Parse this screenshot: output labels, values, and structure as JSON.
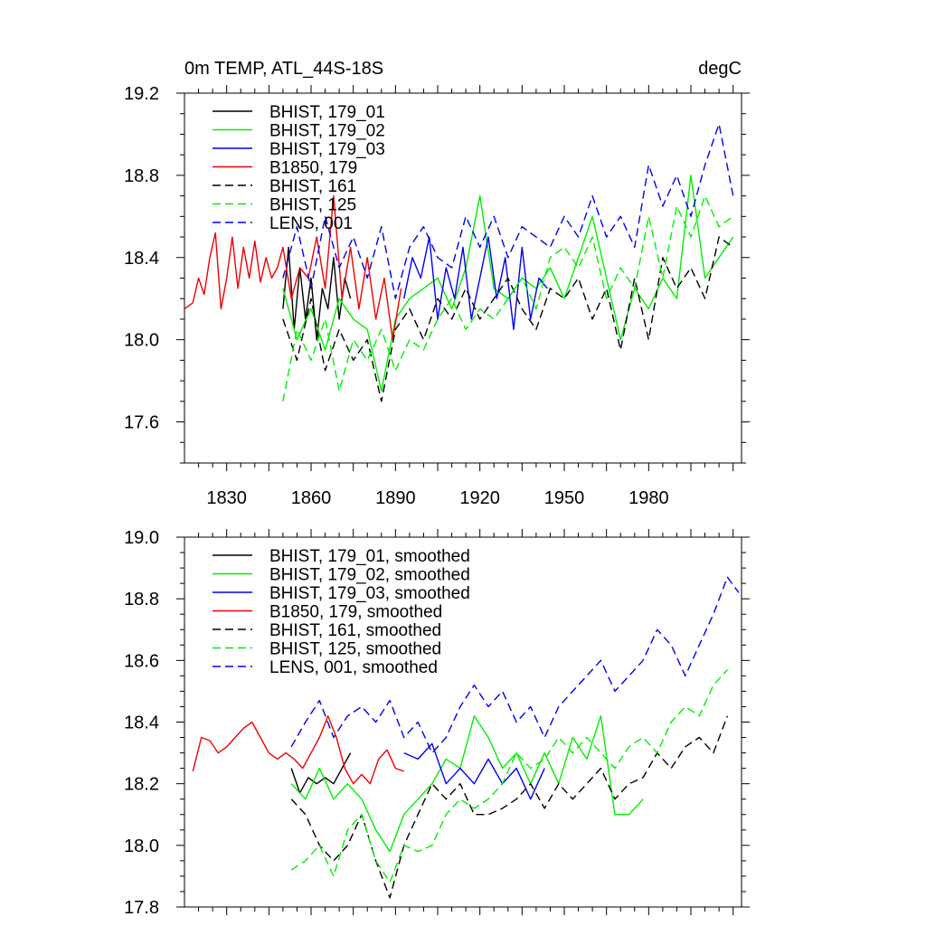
{
  "chart_data": [
    {
      "type": "line",
      "title_left": "0m TEMP, ATL_44S-18S",
      "title_right": "degC",
      "xlabel": "",
      "ylabel": "",
      "xlim": [
        1815,
        2013
      ],
      "ylim": [
        17.4,
        19.2
      ],
      "xticks": [
        1830,
        1860,
        1890,
        1920,
        1950,
        1980
      ],
      "yticks": [
        17.6,
        18.0,
        18.4,
        18.8,
        19.2
      ],
      "legend_position": "top-left",
      "series": [
        {
          "name": "BHIST, 179_01",
          "color": "#000000",
          "dash": "solid",
          "x": [
            1850,
            1852,
            1854,
            1856,
            1858,
            1860,
            1862,
            1864,
            1866,
            1868,
            1870,
            1872,
            1874
          ],
          "values": [
            18.15,
            18.45,
            18.05,
            18.35,
            18.1,
            18.3,
            18.0,
            18.25,
            18.15,
            18.4,
            18.1,
            18.3,
            18.2
          ]
        },
        {
          "name": "BHIST, 179_02",
          "color": "#00ee00",
          "dash": "solid",
          "x": [
            1850,
            1855,
            1860,
            1865,
            1870,
            1875,
            1880,
            1885,
            1890,
            1895,
            1900,
            1905,
            1910,
            1915,
            1920,
            1925,
            1930,
            1935,
            1940,
            1945,
            1950,
            1955,
            1960,
            1965,
            1970,
            1975,
            1980,
            1985,
            1990,
            1995,
            2000,
            2005,
            2010
          ],
          "values": [
            18.25,
            18.0,
            18.15,
            17.95,
            18.2,
            18.1,
            18.05,
            17.75,
            18.1,
            18.2,
            18.25,
            18.3,
            18.15,
            18.35,
            18.7,
            18.25,
            18.2,
            18.3,
            18.25,
            18.35,
            18.2,
            18.4,
            18.6,
            18.3,
            18.0,
            18.25,
            18.15,
            18.3,
            18.2,
            18.8,
            18.3,
            18.4,
            18.5
          ]
        },
        {
          "name": "BHIST, 179_03",
          "color": "#0000ee",
          "dash": "solid",
          "x": [
            1893,
            1896,
            1899,
            1902,
            1905,
            1908,
            1911,
            1914,
            1917,
            1920,
            1923,
            1926,
            1929,
            1932,
            1935,
            1938,
            1941,
            1944
          ],
          "values": [
            18.2,
            18.4,
            18.3,
            18.5,
            18.1,
            18.35,
            18.2,
            18.45,
            18.1,
            18.3,
            18.5,
            18.2,
            18.4,
            18.05,
            18.45,
            18.1,
            18.3,
            18.25
          ]
        },
        {
          "name": "B1850, 179",
          "color": "#ee0000",
          "dash": "solid",
          "x": [
            1815,
            1818,
            1820,
            1822,
            1824,
            1826,
            1828,
            1830,
            1832,
            1834,
            1836,
            1838,
            1840,
            1842,
            1844,
            1846,
            1848,
            1850,
            1853,
            1856,
            1859,
            1862,
            1865,
            1868,
            1871,
            1874,
            1877,
            1880,
            1883,
            1886,
            1889,
            1892
          ],
          "values": [
            18.15,
            18.18,
            18.3,
            18.22,
            18.4,
            18.52,
            18.15,
            18.3,
            18.5,
            18.25,
            18.45,
            18.3,
            18.48,
            18.28,
            18.4,
            18.3,
            18.35,
            18.45,
            18.2,
            18.35,
            18.3,
            18.5,
            18.25,
            18.7,
            18.2,
            18.45,
            18.15,
            18.4,
            18.1,
            18.3,
            18.0,
            18.25
          ]
        },
        {
          "name": "BHIST, 161",
          "color": "#000000",
          "dash": "dashed",
          "x": [
            1850,
            1855,
            1860,
            1865,
            1870,
            1875,
            1880,
            1885,
            1890,
            1895,
            1900,
            1905,
            1910,
            1915,
            1920,
            1925,
            1930,
            1935,
            1940,
            1945,
            1950,
            1955,
            1960,
            1965,
            1970,
            1975,
            1980,
            1985,
            1990,
            1995,
            2000,
            2005,
            2010
          ],
          "values": [
            18.1,
            17.9,
            18.2,
            17.85,
            18.05,
            17.9,
            18.0,
            17.7,
            18.05,
            18.15,
            18.0,
            18.2,
            18.1,
            18.25,
            18.1,
            18.2,
            18.3,
            18.15,
            18.05,
            18.25,
            18.2,
            18.3,
            18.1,
            18.25,
            17.95,
            18.3,
            18.0,
            18.4,
            18.25,
            18.35,
            18.2,
            18.5,
            18.45
          ]
        },
        {
          "name": "BHIST, 125",
          "color": "#00ee00",
          "dash": "dashed",
          "x": [
            1850,
            1855,
            1860,
            1865,
            1870,
            1875,
            1880,
            1885,
            1890,
            1895,
            1900,
            1905,
            1910,
            1915,
            1920,
            1925,
            1930,
            1935,
            1940,
            1945,
            1950,
            1955,
            1960,
            1965,
            1970,
            1975,
            1980,
            1985,
            1990,
            1995,
            2000,
            2005,
            2010
          ],
          "values": [
            17.7,
            18.05,
            17.9,
            18.1,
            17.75,
            18.0,
            17.9,
            18.05,
            17.85,
            18.0,
            17.95,
            18.1,
            18.2,
            18.05,
            18.15,
            18.1,
            18.2,
            18.3,
            18.15,
            18.4,
            18.45,
            18.35,
            18.5,
            18.2,
            18.35,
            18.25,
            18.6,
            18.3,
            18.65,
            18.5,
            18.7,
            18.55,
            18.6
          ]
        },
        {
          "name": "LENS, 001",
          "color": "#0000ee",
          "dash": "dashed",
          "x": [
            1850,
            1855,
            1860,
            1865,
            1870,
            1875,
            1880,
            1885,
            1890,
            1895,
            1900,
            1905,
            1910,
            1915,
            1920,
            1925,
            1930,
            1935,
            1940,
            1945,
            1950,
            1955,
            1960,
            1965,
            1970,
            1975,
            1980,
            1985,
            1990,
            1995,
            2000,
            2005,
            2010
          ],
          "values": [
            18.3,
            18.55,
            18.25,
            18.6,
            18.35,
            18.5,
            18.3,
            18.55,
            18.2,
            18.45,
            18.55,
            18.4,
            18.35,
            18.6,
            18.45,
            18.6,
            18.4,
            18.55,
            18.5,
            18.45,
            18.6,
            18.5,
            18.7,
            18.5,
            18.6,
            18.45,
            18.85,
            18.65,
            18.8,
            18.6,
            18.85,
            19.05,
            18.7
          ]
        }
      ]
    },
    {
      "type": "line",
      "title_left": "",
      "title_right": "",
      "xlabel": "",
      "ylabel": "",
      "xlim": [
        1815,
        2013
      ],
      "ylim": [
        17.8,
        19.0
      ],
      "yticks": [
        17.8,
        18.0,
        18.2,
        18.4,
        18.6,
        18.8,
        19.0
      ],
      "legend_position": "top-left",
      "series": [
        {
          "name": "BHIST, 179_01, smoothed",
          "color": "#000000",
          "dash": "solid",
          "x": [
            1853,
            1856,
            1859,
            1862,
            1865,
            1868,
            1871,
            1874
          ],
          "values": [
            18.25,
            18.17,
            18.22,
            18.2,
            18.22,
            18.2,
            18.25,
            18.3
          ]
        },
        {
          "name": "BHIST, 179_02, smoothed",
          "color": "#00ee00",
          "dash": "solid",
          "x": [
            1853,
            1858,
            1863,
            1868,
            1873,
            1878,
            1883,
            1888,
            1893,
            1898,
            1903,
            1908,
            1913,
            1918,
            1923,
            1928,
            1933,
            1938,
            1943,
            1948,
            1953,
            1958,
            1963,
            1968,
            1973,
            1978
          ],
          "values": [
            18.2,
            18.15,
            18.25,
            18.15,
            18.2,
            18.15,
            18.05,
            17.98,
            18.1,
            18.15,
            18.2,
            18.28,
            18.25,
            18.42,
            18.35,
            18.25,
            18.3,
            18.2,
            18.3,
            18.2,
            18.35,
            18.28,
            18.42,
            18.1,
            18.1,
            18.15
          ]
        },
        {
          "name": "BHIST, 179_03, smoothed",
          "color": "#0000ee",
          "dash": "solid",
          "x": [
            1893,
            1898,
            1903,
            1908,
            1913,
            1918,
            1923,
            1928,
            1933,
            1938,
            1943
          ],
          "values": [
            18.3,
            18.28,
            18.33,
            18.2,
            18.25,
            18.2,
            18.28,
            18.2,
            18.25,
            18.15,
            18.25
          ]
        },
        {
          "name": "B1850, 179, smoothed",
          "color": "#ee0000",
          "dash": "solid",
          "x": [
            1818,
            1821,
            1824,
            1827,
            1830,
            1833,
            1836,
            1839,
            1842,
            1845,
            1848,
            1851,
            1854,
            1857,
            1860,
            1863,
            1866,
            1869,
            1872,
            1875,
            1878,
            1881,
            1884,
            1887,
            1890,
            1893
          ],
          "values": [
            18.24,
            18.35,
            18.34,
            18.3,
            18.32,
            18.35,
            18.38,
            18.4,
            18.35,
            18.3,
            18.28,
            18.3,
            18.28,
            18.25,
            18.3,
            18.35,
            18.42,
            18.35,
            18.25,
            18.2,
            18.23,
            18.2,
            18.28,
            18.31,
            18.25,
            18.24
          ]
        },
        {
          "name": "BHIST, 161, smoothed",
          "color": "#000000",
          "dash": "dashed",
          "x": [
            1853,
            1858,
            1863,
            1868,
            1873,
            1878,
            1883,
            1888,
            1893,
            1898,
            1903,
            1908,
            1913,
            1918,
            1923,
            1928,
            1933,
            1938,
            1943,
            1948,
            1953,
            1958,
            1963,
            1968,
            1973,
            1978,
            1983,
            1988,
            1993,
            1998,
            2003,
            2008
          ],
          "values": [
            18.15,
            18.1,
            18.0,
            17.95,
            18.0,
            18.1,
            17.95,
            17.83,
            18.0,
            18.1,
            18.2,
            18.15,
            18.2,
            18.1,
            18.1,
            18.12,
            18.15,
            18.2,
            18.12,
            18.2,
            18.15,
            18.2,
            18.25,
            18.15,
            18.2,
            18.22,
            18.3,
            18.25,
            18.32,
            18.35,
            18.3,
            18.42
          ]
        },
        {
          "name": "BHIST, 125, smoothed",
          "color": "#00ee00",
          "dash": "dashed",
          "x": [
            1853,
            1858,
            1863,
            1868,
            1873,
            1878,
            1883,
            1888,
            1893,
            1898,
            1903,
            1908,
            1913,
            1918,
            1923,
            1928,
            1933,
            1938,
            1943,
            1948,
            1953,
            1958,
            1963,
            1968,
            1973,
            1978,
            1983,
            1988,
            1993,
            1998,
            2003,
            2008
          ],
          "values": [
            17.92,
            17.95,
            18.0,
            17.9,
            18.05,
            18.1,
            17.95,
            17.88,
            18.0,
            17.98,
            18.0,
            18.1,
            18.15,
            18.12,
            18.15,
            18.2,
            18.3,
            18.25,
            18.28,
            18.35,
            18.3,
            18.35,
            18.3,
            18.25,
            18.32,
            18.35,
            18.3,
            18.4,
            18.45,
            18.42,
            18.52,
            18.57
          ]
        },
        {
          "name": "LENS, 001, smoothed",
          "color": "#0000ee",
          "dash": "dashed",
          "x": [
            1853,
            1858,
            1863,
            1868,
            1873,
            1878,
            1883,
            1888,
            1893,
            1898,
            1903,
            1908,
            1913,
            1918,
            1923,
            1928,
            1933,
            1938,
            1943,
            1948,
            1953,
            1958,
            1963,
            1968,
            1973,
            1978,
            1983,
            1988,
            1993,
            1998,
            2003,
            2008,
            2012
          ],
          "values": [
            18.32,
            18.4,
            18.47,
            18.35,
            18.42,
            18.45,
            18.4,
            18.47,
            18.35,
            18.4,
            18.3,
            18.35,
            18.45,
            18.52,
            18.45,
            18.5,
            18.4,
            18.45,
            18.35,
            18.45,
            18.5,
            18.55,
            18.6,
            18.5,
            18.55,
            18.6,
            18.7,
            18.65,
            18.55,
            18.65,
            18.75,
            18.87,
            18.82
          ]
        }
      ]
    }
  ]
}
